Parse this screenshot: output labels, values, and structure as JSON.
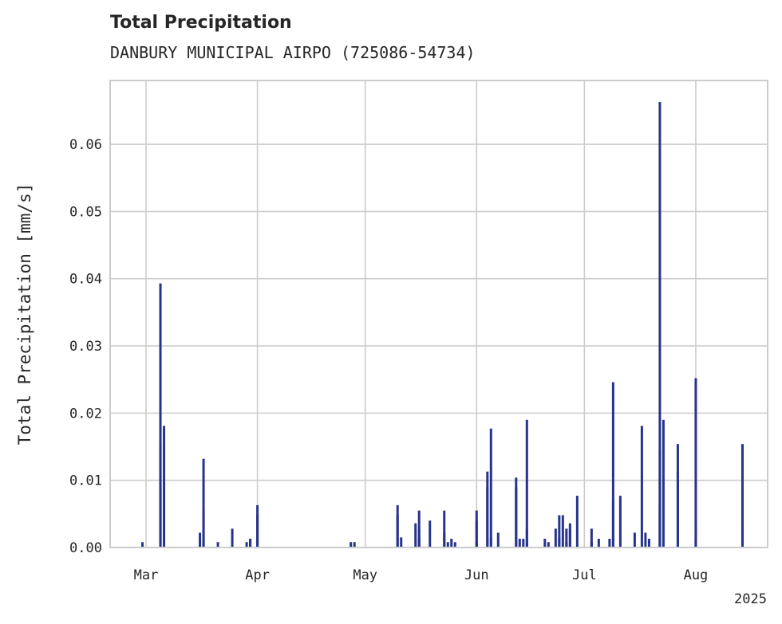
{
  "chart_data": {
    "type": "bar",
    "title": "Total Precipitation",
    "subtitle": "DANBURY MUNICIPAL AIRPO (725086-54734)",
    "xlabel": "",
    "ylabel": "Total Precipitation [mm/s]",
    "x_axis": {
      "type": "date",
      "range": [
        "2025-02-19",
        "2025-08-21"
      ],
      "ticks": [
        {
          "date": "2025-03-01",
          "label": "Mar"
        },
        {
          "date": "2025-04-01",
          "label": "Apr"
        },
        {
          "date": "2025-05-01",
          "label": "May"
        },
        {
          "date": "2025-06-01",
          "label": "Jun"
        },
        {
          "date": "2025-07-01",
          "label": "Jul"
        },
        {
          "date": "2025-08-01",
          "label": "Aug"
        }
      ],
      "offset_label": "2025"
    },
    "y_axis": {
      "range": [
        0,
        0.0695
      ],
      "ticks": [
        0.0,
        0.01,
        0.02,
        0.03,
        0.04,
        0.05,
        0.06
      ],
      "tick_labels": [
        "0.00",
        "0.01",
        "0.02",
        "0.03",
        "0.04",
        "0.05",
        "0.06"
      ]
    },
    "grid": true,
    "legend": "none",
    "series": [
      {
        "color": "#27348b",
        "points": [
          [
            "2025-02-28",
            0.0008
          ],
          [
            "2025-03-05",
            0.0094
          ],
          [
            "2025-03-05",
            0.0155
          ],
          [
            "2025-03-05",
            0.0393
          ],
          [
            "2025-03-06",
            0.0181
          ],
          [
            "2025-03-16",
            0.0008
          ],
          [
            "2025-03-16",
            0.0022
          ],
          [
            "2025-03-17",
            0.0132
          ],
          [
            "2025-03-17",
            0.0055
          ],
          [
            "2025-03-21",
            0.0008
          ],
          [
            "2025-03-25",
            0.0028
          ],
          [
            "2025-03-29",
            0.0008
          ],
          [
            "2025-03-30",
            0.0013
          ],
          [
            "2025-03-30",
            0.0013
          ],
          [
            "2025-04-01",
            0.0063
          ],
          [
            "2025-04-01",
            0.0048
          ],
          [
            "2025-04-27",
            0.0008
          ],
          [
            "2025-04-28",
            0.0008
          ],
          [
            "2025-05-10",
            0.0048
          ],
          [
            "2025-05-10",
            0.0063
          ],
          [
            "2025-05-11",
            0.0015
          ],
          [
            "2025-05-15",
            0.0036
          ],
          [
            "2025-05-16",
            0.0028
          ],
          [
            "2025-05-16",
            0.0055
          ],
          [
            "2025-05-16",
            0.0014
          ],
          [
            "2025-05-19",
            0.004
          ],
          [
            "2025-05-23",
            0.0022
          ],
          [
            "2025-05-23",
            0.0055
          ],
          [
            "2025-05-24",
            0.0008
          ],
          [
            "2025-05-25",
            0.0013
          ],
          [
            "2025-05-26",
            0.0008
          ],
          [
            "2025-06-01",
            0.004
          ],
          [
            "2025-06-01",
            0.0055
          ],
          [
            "2025-06-01",
            0.0008
          ],
          [
            "2025-06-04",
            0.009
          ],
          [
            "2025-06-04",
            0.0113
          ],
          [
            "2025-06-05",
            0.0177
          ],
          [
            "2025-06-05",
            0.0015
          ],
          [
            "2025-06-07",
            0.0022
          ],
          [
            "2025-06-12",
            0.009
          ],
          [
            "2025-06-12",
            0.0104
          ],
          [
            "2025-06-13",
            0.0013
          ],
          [
            "2025-06-14",
            0.0013
          ],
          [
            "2025-06-15",
            0.019
          ],
          [
            "2025-06-15",
            0.0028
          ],
          [
            "2025-06-20",
            0.0013
          ],
          [
            "2025-06-21",
            0.0008
          ],
          [
            "2025-06-23",
            0.0028
          ],
          [
            "2025-06-24",
            0.0048
          ],
          [
            "2025-06-24",
            0.0015
          ],
          [
            "2025-06-25",
            0.0048
          ],
          [
            "2025-06-26",
            0.0028
          ],
          [
            "2025-06-26",
            0.0008
          ],
          [
            "2025-06-27",
            0.0036
          ],
          [
            "2025-06-27",
            0.0028
          ],
          [
            "2025-06-29",
            0.0077
          ],
          [
            "2025-07-03",
            0.0028
          ],
          [
            "2025-07-03",
            0.0008
          ],
          [
            "2025-07-05",
            0.0013
          ],
          [
            "2025-07-08",
            0.0013
          ],
          [
            "2025-07-09",
            0.0069
          ],
          [
            "2025-07-09",
            0.0246
          ],
          [
            "2025-07-11",
            0.0077
          ],
          [
            "2025-07-15",
            0.0022
          ],
          [
            "2025-07-17",
            0.0181
          ],
          [
            "2025-07-18",
            0.0022
          ],
          [
            "2025-07-19",
            0.0013
          ],
          [
            "2025-07-22",
            0.0063
          ],
          [
            "2025-07-22",
            0.0145
          ],
          [
            "2025-07-22",
            0.0663
          ],
          [
            "2025-07-23",
            0.019
          ],
          [
            "2025-07-27",
            0.0113
          ],
          [
            "2025-07-27",
            0.0154
          ],
          [
            "2025-08-01",
            0.0013
          ],
          [
            "2025-08-01",
            0.0252
          ],
          [
            "2025-08-01",
            0.004
          ],
          [
            "2025-08-14",
            0.0154
          ],
          [
            "2025-08-14",
            0.0028
          ]
        ]
      }
    ]
  }
}
